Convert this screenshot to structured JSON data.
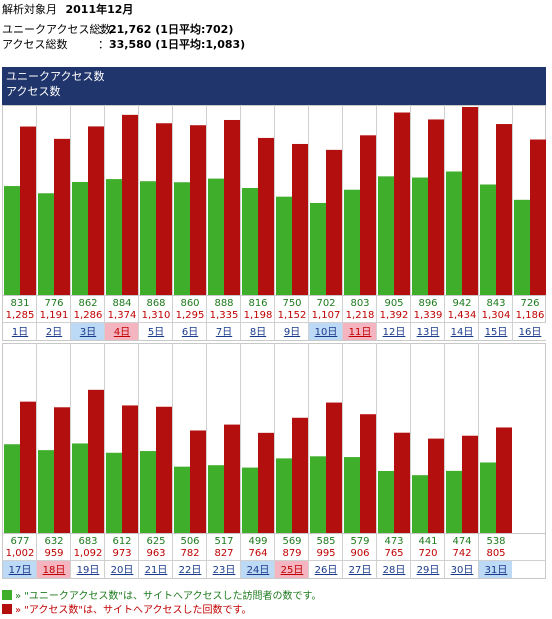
{
  "summary": {
    "month_label": "解析対象月",
    "month_value": "2011年12月",
    "unique_label": "ユニークアクセス総数",
    "unique_value": "21,762 (1日平均:702)",
    "access_label": "アクセス総数",
    "access_value": "33,580 (1日平均:1,083)",
    "separator": "："
  },
  "chart_header": {
    "line1": "ユニークアクセス数",
    "line2": "アクセス数"
  },
  "legend": {
    "unique_text": "» \"ユニークアクセス数\"は、サイトへアクセスした訪問者の数です。",
    "access_text": "» \"アクセス数\"は、サイトへアクセスした回数です。"
  },
  "colors": {
    "unique_bar": "#3fae2a",
    "access_bar": "#b30f0f",
    "unique_text": "#1e7a1e",
    "access_text": "#c00000",
    "header_bg": "#20356b",
    "saturday_bg": "#bcd9f5",
    "holiday_bg": "#f5b5c0"
  },
  "chart_data": {
    "type": "bar",
    "title": "",
    "series": [
      {
        "name": "ユニークアクセス数",
        "values": [
          831,
          776,
          862,
          884,
          868,
          860,
          888,
          816,
          750,
          702,
          803,
          905,
          896,
          942,
          843,
          726,
          677,
          632,
          683,
          612,
          625,
          506,
          517,
          499,
          569,
          585,
          579,
          473,
          441,
          474,
          538
        ]
      },
      {
        "name": "アクセス数",
        "values": [
          1285,
          1191,
          1286,
          1374,
          1310,
          1295,
          1335,
          1198,
          1152,
          1107,
          1218,
          1392,
          1339,
          1434,
          1304,
          1186,
          1002,
          959,
          1092,
          973,
          963,
          782,
          827,
          764,
          879,
          995,
          906,
          765,
          720,
          742,
          805
        ]
      }
    ],
    "categories": [
      "1日",
      "2日",
      "3日",
      "4日",
      "5日",
      "6日",
      "7日",
      "8日",
      "9日",
      "10日",
      "11日",
      "12日",
      "13日",
      "14日",
      "15日",
      "16日",
      "17日",
      "18日",
      "19日",
      "20日",
      "21日",
      "22日",
      "23日",
      "24日",
      "25日",
      "26日",
      "27日",
      "28日",
      "29日",
      "30日",
      "31日"
    ],
    "unique_labels": [
      "831",
      "776",
      "862",
      "884",
      "868",
      "860",
      "888",
      "816",
      "750",
      "702",
      "803",
      "905",
      "896",
      "942",
      "843",
      "726",
      "677",
      "632",
      "683",
      "612",
      "625",
      "506",
      "517",
      "499",
      "569",
      "585",
      "579",
      "473",
      "441",
      "474",
      "538"
    ],
    "access_labels": [
      "1,285",
      "1,191",
      "1,286",
      "1,374",
      "1,310",
      "1,295",
      "1,335",
      "1,198",
      "1,152",
      "1,107",
      "1,218",
      "1,392",
      "1,339",
      "1,434",
      "1,304",
      "1,186",
      "1,002",
      "959",
      "1,092",
      "973",
      "963",
      "782",
      "827",
      "764",
      "879",
      "995",
      "906",
      "765",
      "720",
      "742",
      "805"
    ],
    "day_type": [
      "",
      "",
      "sat",
      "sun",
      "",
      "",
      "",
      "",
      "",
      "sat",
      "sun",
      "",
      "",
      "",
      "",
      "",
      "sat",
      "sun",
      "",
      "",
      "",
      "",
      "",
      "sat",
      "sun",
      "",
      "",
      "",
      "",
      "",
      "sat"
    ]
  }
}
